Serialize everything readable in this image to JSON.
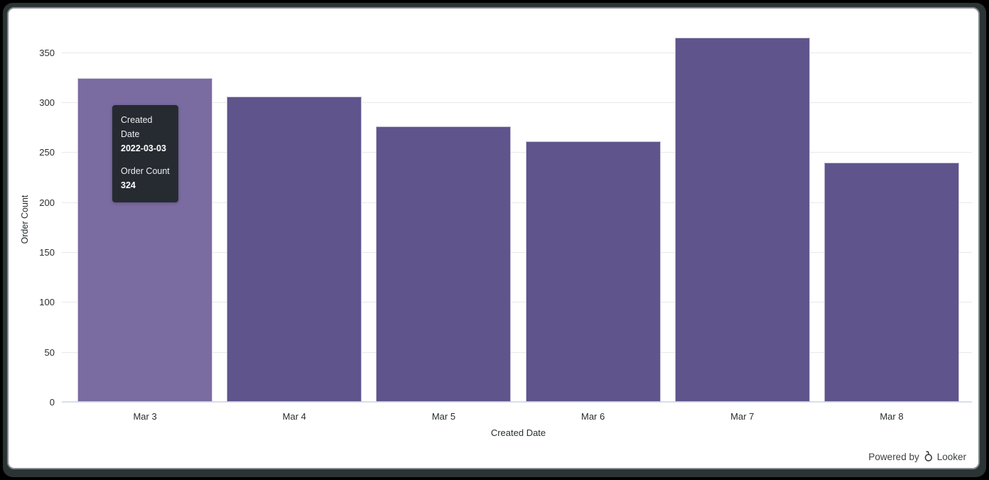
{
  "chart_data": {
    "type": "bar",
    "categories": [
      "Mar 3",
      "Mar 4",
      "Mar 5",
      "Mar 6",
      "Mar 7",
      "Mar 8"
    ],
    "values": [
      324,
      306,
      276,
      261,
      365,
      240
    ],
    "title": "",
    "xlabel": "Created Date",
    "ylabel": "Order Count",
    "ylim": [
      0,
      370
    ],
    "yticks": [
      0,
      50,
      100,
      150,
      200,
      250,
      300,
      350
    ],
    "grid": true,
    "legend": "none",
    "highlighted_index": 0,
    "bar_color": "#5f548c",
    "bar_color_highlight": "#7a6ba1",
    "gridline_color": "#e9e9e9",
    "axis_line_color": "#d7deeb"
  },
  "tooltip": {
    "label1": "Created Date",
    "value1": "2022-03-03",
    "label2": "Order Count",
    "value2": "324"
  },
  "footer": {
    "powered_by": "Powered by",
    "brand": "Looker"
  }
}
